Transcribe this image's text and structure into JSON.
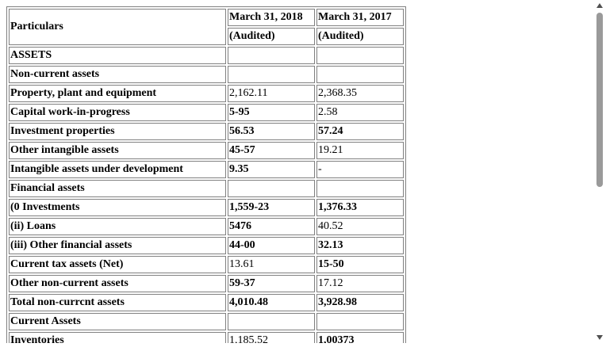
{
  "table": {
    "header": {
      "particulars": "Particulars",
      "columns": [
        "March 31, 2018",
        "March 31, 2017"
      ],
      "sub": [
        "(Audited)",
        "(Audited)"
      ]
    },
    "rows": [
      {
        "label": "ASSETS",
        "values": []
      },
      {
        "label": "Non-current assets",
        "values": []
      },
      {
        "label": "Property, plant and equipment",
        "values": [
          "2,162.11",
          "2,368.35"
        ],
        "bold": [
          false,
          false
        ]
      },
      {
        "label": "Capital work-in-progress",
        "values": [
          "5-95",
          "2.58"
        ],
        "bold": [
          true,
          false
        ]
      },
      {
        "label": "Investment properties",
        "values": [
          "56.53",
          "57.24"
        ],
        "bold": [
          true,
          true
        ]
      },
      {
        "label": "Other intangible assets",
        "values": [
          "45-57",
          "19.21"
        ],
        "bold": [
          true,
          false
        ]
      },
      {
        "label": "Intangible assets under development",
        "values": [
          "9.35",
          "-"
        ],
        "bold": [
          true,
          false
        ]
      },
      {
        "label": "Financial assets",
        "values": []
      },
      {
        "label": "(0 Investments",
        "values": [
          "1,559-23",
          "1,376.33"
        ],
        "bold": [
          true,
          true
        ]
      },
      {
        "label": "(ii) Loans",
        "values": [
          "5476",
          "40.52"
        ],
        "bold": [
          true,
          false
        ]
      },
      {
        "label": "(iii) Other financial assets",
        "values": [
          "44-00",
          "32.13"
        ],
        "bold": [
          true,
          true
        ]
      },
      {
        "label": "Current tax assets (Net)",
        "values": [
          "13.61",
          "15-50"
        ],
        "bold": [
          false,
          true
        ]
      },
      {
        "label": "Other non-current assets",
        "values": [
          "59-37",
          "17.12"
        ],
        "bold": [
          true,
          false
        ]
      },
      {
        "label": "Total non-currcnt assets",
        "values": [
          "4,010.48",
          "3,928.98"
        ],
        "bold": [
          true,
          true
        ]
      },
      {
        "label": "Current Assets",
        "values": []
      },
      {
        "label": "Inventories",
        "values": [
          "1,185.52",
          "1,00373"
        ],
        "bold": [
          false,
          true
        ]
      }
    ]
  }
}
